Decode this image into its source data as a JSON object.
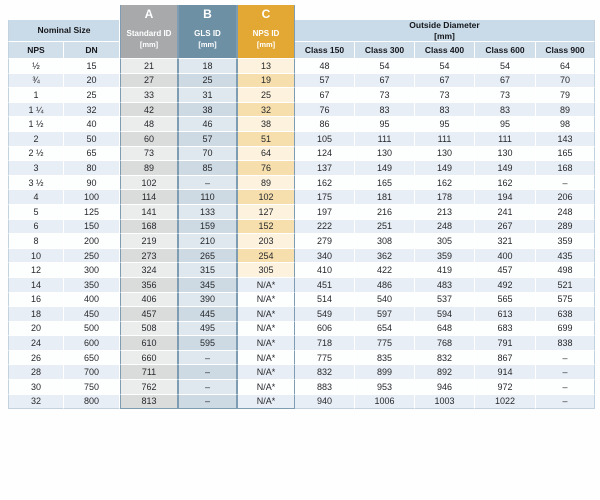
{
  "table": {
    "headers": {
      "nominal_size": "Nominal Size",
      "nps": "NPS",
      "dn": "DN",
      "outside_diameter_line1": "Outside Diameter",
      "outside_diameter_line2": "[mm]",
      "classes": [
        "Class 150",
        "Class 300",
        "Class 400",
        "Class 600",
        "Class 900"
      ],
      "a": {
        "letter": "A",
        "name": "Standard ID",
        "unit": "[mm]"
      },
      "b": {
        "letter": "B",
        "name": "GLS ID",
        "unit": "[mm]"
      },
      "c": {
        "letter": "C",
        "name": "NPS ID",
        "unit": "[mm]"
      }
    },
    "rows": [
      [
        "½",
        "15",
        "21",
        "18",
        "13",
        "48",
        "54",
        "54",
        "54",
        "64"
      ],
      [
        "¾",
        "20",
        "27",
        "25",
        "19",
        "57",
        "67",
        "67",
        "67",
        "70"
      ],
      [
        "1",
        "25",
        "33",
        "31",
        "25",
        "67",
        "73",
        "73",
        "73",
        "79"
      ],
      [
        "1 ¼",
        "32",
        "42",
        "38",
        "32",
        "76",
        "83",
        "83",
        "83",
        "89"
      ],
      [
        "1 ½",
        "40",
        "48",
        "46",
        "38",
        "86",
        "95",
        "95",
        "95",
        "98"
      ],
      [
        "2",
        "50",
        "60",
        "57",
        "51",
        "105",
        "111",
        "111",
        "111",
        "143"
      ],
      [
        "2 ½",
        "65",
        "73",
        "70",
        "64",
        "124",
        "130",
        "130",
        "130",
        "165"
      ],
      [
        "3",
        "80",
        "89",
        "85",
        "76",
        "137",
        "149",
        "149",
        "149",
        "168"
      ],
      [
        "3 ½",
        "90",
        "102",
        "–",
        "89",
        "162",
        "165",
        "162",
        "162",
        "–"
      ],
      [
        "4",
        "100",
        "114",
        "110",
        "102",
        "175",
        "181",
        "178",
        "194",
        "206"
      ],
      [
        "5",
        "125",
        "141",
        "133",
        "127",
        "197",
        "216",
        "213",
        "241",
        "248"
      ],
      [
        "6",
        "150",
        "168",
        "159",
        "152",
        "222",
        "251",
        "248",
        "267",
        "289"
      ],
      [
        "8",
        "200",
        "219",
        "210",
        "203",
        "279",
        "308",
        "305",
        "321",
        "359"
      ],
      [
        "10",
        "250",
        "273",
        "265",
        "254",
        "340",
        "362",
        "359",
        "400",
        "435"
      ],
      [
        "12",
        "300",
        "324",
        "315",
        "305",
        "410",
        "422",
        "419",
        "457",
        "498"
      ],
      [
        "14",
        "350",
        "356",
        "345",
        "N/A*",
        "451",
        "486",
        "483",
        "492",
        "521"
      ],
      [
        "16",
        "400",
        "406",
        "390",
        "N/A*",
        "514",
        "540",
        "537",
        "565",
        "575"
      ],
      [
        "18",
        "450",
        "457",
        "445",
        "N/A*",
        "549",
        "597",
        "594",
        "613",
        "638"
      ],
      [
        "20",
        "500",
        "508",
        "495",
        "N/A*",
        "606",
        "654",
        "648",
        "683",
        "699"
      ],
      [
        "24",
        "600",
        "610",
        "595",
        "N/A*",
        "718",
        "775",
        "768",
        "791",
        "838"
      ],
      [
        "26",
        "650",
        "660",
        "–",
        "N/A*",
        "775",
        "835",
        "832",
        "867",
        "–"
      ],
      [
        "28",
        "700",
        "711",
        "–",
        "N/A*",
        "832",
        "899",
        "892",
        "914",
        "–"
      ],
      [
        "30",
        "750",
        "762",
        "–",
        "N/A*",
        "883",
        "953",
        "946",
        "972",
        "–"
      ],
      [
        "32",
        "800",
        "813",
        "–",
        "N/A*",
        "940",
        "1006",
        "1003",
        "1022",
        "–"
      ]
    ],
    "colors": {
      "header_a": "#a7a9ab",
      "header_b": "#6e90a5",
      "header_c": "#e3a834",
      "band_blue": "#c9dbe8",
      "subheader_blue": "#d1dfeb",
      "stripe_blue": "#e8eef5",
      "col_a_tint": "#ebecec",
      "col_b_tint": "#dfe8ee",
      "col_c_tint": "#fcf2dd",
      "highlight_border": "#7f9db2"
    }
  }
}
